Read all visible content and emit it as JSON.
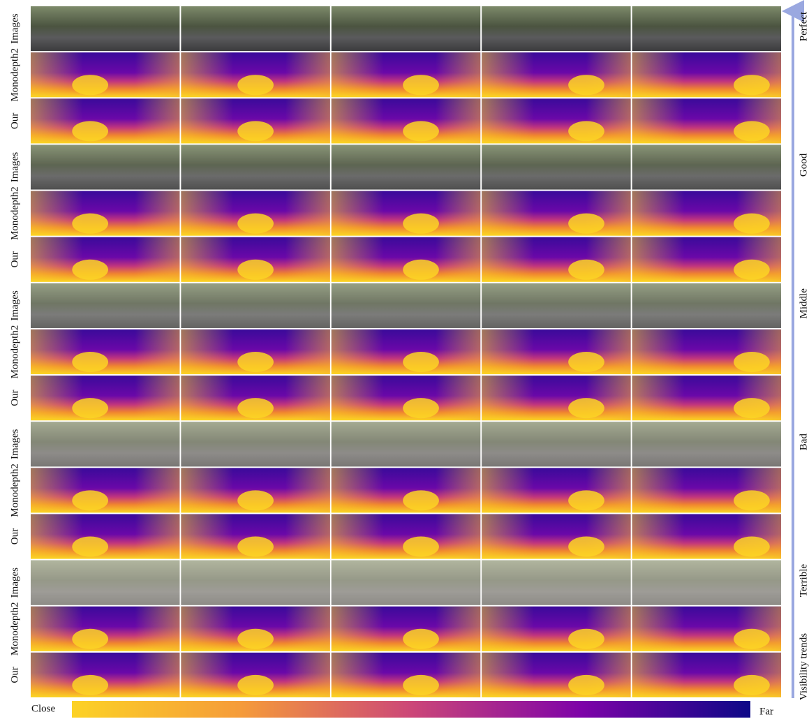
{
  "row_groups": [
    {
      "level": "Perfect",
      "rows": [
        "Images",
        "Monodepth2",
        "Our"
      ]
    },
    {
      "level": "Good",
      "rows": [
        "Images",
        "Monodepth2",
        "Our"
      ]
    },
    {
      "level": "Middle",
      "rows": [
        "Images",
        "Monodepth2",
        "Our"
      ]
    },
    {
      "level": "Bad",
      "rows": [
        "Images",
        "Monodepth2",
        "Our"
      ]
    },
    {
      "level": "Terrible",
      "rows": [
        "Images",
        "Monodepth2",
        "Our"
      ]
    }
  ],
  "visibility_axis": {
    "label": "Visibility trends"
  },
  "colorbar": {
    "min_label": "Close",
    "max_label": "Far"
  }
}
